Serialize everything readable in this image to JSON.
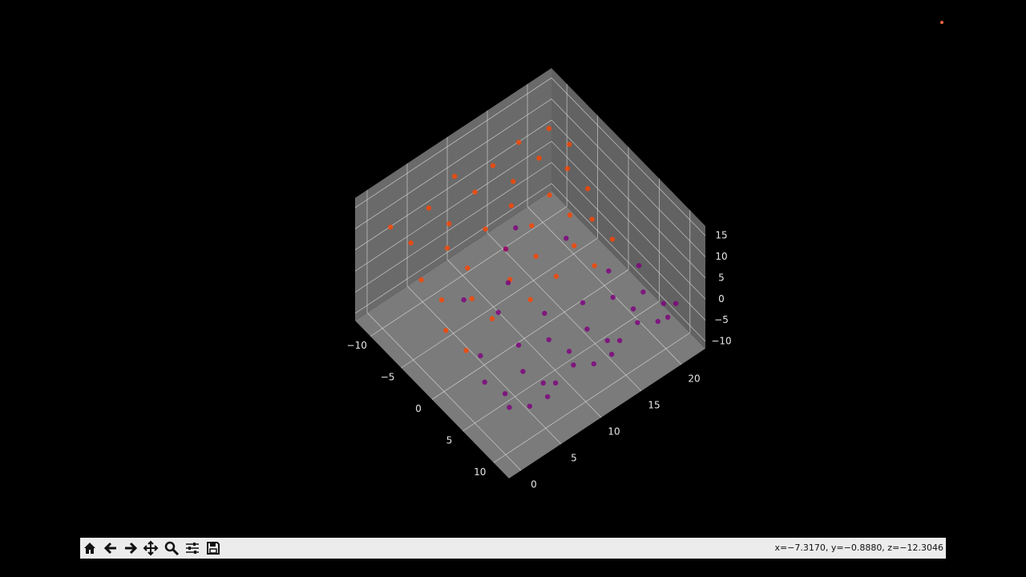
{
  "chart_data": {
    "type": "scatter3d",
    "xlim": [
      -12.5,
      12.5
    ],
    "ylim": [
      -1.5,
      23
    ],
    "zlim": [
      -11.7,
      17.3
    ],
    "xticks": [
      {
        "value": -10,
        "label": "−10"
      },
      {
        "value": -5,
        "label": "−5"
      },
      0,
      5,
      10
    ],
    "yticks": [
      0,
      5,
      10,
      15,
      20
    ],
    "zticks": [
      {
        "value": -10,
        "label": "−10"
      },
      {
        "value": -5,
        "label": "−5"
      },
      0,
      5,
      10,
      15
    ],
    "grid": true,
    "series": [
      {
        "color": "#ff4500",
        "x": [
          -10,
          -9,
          -10,
          -9,
          -10,
          -9,
          -8,
          -7,
          -8,
          -7,
          -8,
          -7,
          -5,
          -6,
          -5,
          -6,
          -5,
          -6,
          -3,
          -4,
          -3,
          -4,
          -3,
          -4,
          -1,
          -2,
          -1,
          -2,
          -1,
          -2,
          1,
          0,
          1,
          0,
          1,
          0
        ],
        "y": [
          1,
          5,
          9,
          13,
          17,
          20,
          2,
          6,
          10,
          14,
          18,
          21,
          1,
          5,
          9,
          13,
          17,
          20,
          2,
          6,
          10,
          14,
          18,
          21,
          1,
          5,
          9,
          13,
          17,
          20,
          2,
          6,
          10,
          14,
          18,
          21
        ],
        "z": [
          11,
          12,
          13,
          12,
          11,
          12,
          9,
          10,
          11,
          10,
          9,
          10,
          6,
          7,
          8,
          7,
          6,
          7,
          3,
          4,
          5,
          4,
          3,
          4,
          0,
          1,
          2,
          1,
          0,
          1,
          -3,
          -2,
          -1,
          -2,
          -3,
          -2
        ]
      },
      {
        "color": "#800080",
        "x": [
          2,
          3,
          2,
          3,
          2,
          3,
          4,
          5,
          4,
          5,
          4,
          5,
          6,
          7,
          6,
          7,
          6,
          7,
          8,
          9,
          8,
          9,
          8,
          9,
          10,
          9,
          10,
          9,
          10,
          9,
          -2,
          0,
          -4,
          -1,
          -3,
          1
        ],
        "y": [
          3,
          7,
          11,
          15,
          19,
          22,
          2,
          6,
          10,
          14,
          18,
          21,
          3,
          7,
          11,
          15,
          19,
          22,
          2,
          6,
          10,
          14,
          18,
          21,
          3,
          7,
          11,
          15,
          19,
          22,
          4,
          8,
          12,
          16,
          10,
          6
        ],
        "z": [
          -4,
          -5,
          -4,
          -5,
          -4,
          -5,
          -6,
          -7,
          -6,
          -7,
          -6,
          -7,
          -7,
          -8,
          -7,
          -8,
          -7,
          -8,
          -6,
          -7,
          -6,
          -7,
          -6,
          -7,
          -4,
          -5,
          -4,
          -5,
          -4,
          -5,
          2,
          4,
          6,
          3,
          5,
          1
        ]
      }
    ]
  },
  "toolbar": {
    "status": "x=−7.3170, y=−0.8880, z=−12.3046"
  }
}
